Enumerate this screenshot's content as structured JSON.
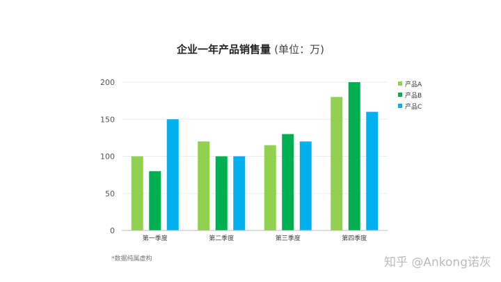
{
  "title": "企业一年产品销售量",
  "title_unit": "(单位：万)",
  "note": "*数据纯属虚构",
  "watermark": "知乎 @Ankong诺灰",
  "colors": {
    "series": [
      "#92d050",
      "#00b050",
      "#00b0f0"
    ],
    "grid": "#ebebeb",
    "axis": "#bfbfbf"
  },
  "chart_data": {
    "type": "bar",
    "title": "企业一年产品销售量 (单位：万)",
    "categories": [
      "第一季度",
      "第二季度",
      "第三季度",
      "第四季度"
    ],
    "series": [
      {
        "name": "产品A",
        "values": [
          100,
          120,
          115,
          180
        ]
      },
      {
        "name": "产品B",
        "values": [
          80,
          100,
          130,
          200
        ]
      },
      {
        "name": "产品C",
        "values": [
          150,
          100,
          120,
          160
        ]
      }
    ],
    "ylim": [
      0,
      200
    ],
    "yticks": [
      0,
      50,
      100,
      150,
      200
    ],
    "grid": true,
    "legend": "right",
    "xlabel": "",
    "ylabel": ""
  }
}
